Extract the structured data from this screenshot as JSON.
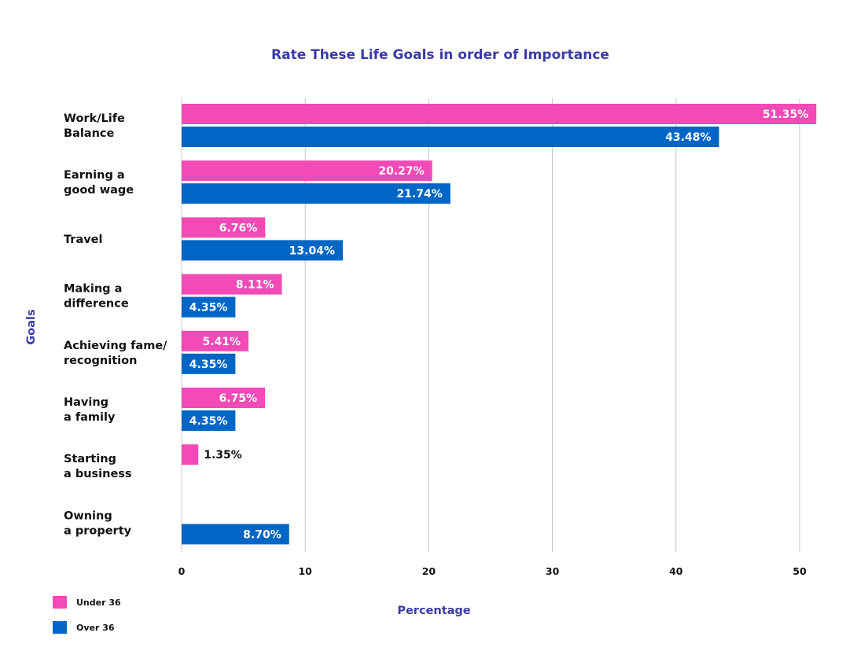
{
  "chart_data": {
    "type": "bar",
    "orientation": "horizontal",
    "title": "Rate These Life Goals in order of Importance",
    "xlabel": "Percentage",
    "ylabel": "Goals",
    "xlim": [
      0,
      51.5
    ],
    "xticks": [
      0,
      10,
      20,
      30,
      40,
      50
    ],
    "grid": true,
    "legend_position": "bottom-left",
    "categories": [
      [
        "Work/Life",
        "Balance"
      ],
      [
        "Earning a",
        "good wage"
      ],
      [
        "Travel"
      ],
      [
        "Making a",
        "difference"
      ],
      [
        "Achieving fame/",
        "recognition"
      ],
      [
        "Having",
        "a family"
      ],
      [
        "Starting",
        "a business"
      ],
      [
        "Owning",
        "a property"
      ]
    ],
    "series": [
      {
        "name": "Under 36",
        "color": "#f24ab6",
        "values": [
          51.35,
          20.27,
          6.76,
          8.11,
          5.41,
          6.75,
          1.35,
          null
        ],
        "labels": [
          "51.35%",
          "20.27%",
          "6.76%",
          "8.11%",
          "5.41%",
          "6.75%",
          "1.35%",
          ""
        ]
      },
      {
        "name": "Over 36",
        "color": "#0066c6",
        "values": [
          43.48,
          21.74,
          13.04,
          4.35,
          4.35,
          4.35,
          null,
          8.7
        ],
        "labels": [
          "43.48%",
          "21.74%",
          "13.04%",
          "4.35%",
          "4.35%",
          "4.35%",
          "",
          "8.70%"
        ]
      }
    ]
  }
}
